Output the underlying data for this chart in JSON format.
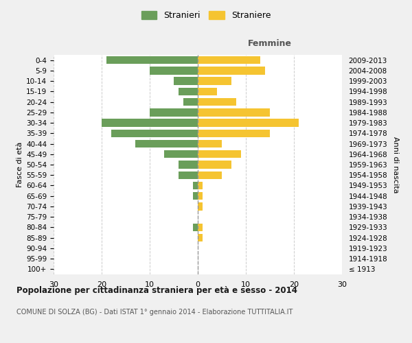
{
  "age_groups": [
    "100+",
    "95-99",
    "90-94",
    "85-89",
    "80-84",
    "75-79",
    "70-74",
    "65-69",
    "60-64",
    "55-59",
    "50-54",
    "45-49",
    "40-44",
    "35-39",
    "30-34",
    "25-29",
    "20-24",
    "15-19",
    "10-14",
    "5-9",
    "0-4"
  ],
  "birth_years": [
    "≤ 1913",
    "1914-1918",
    "1919-1923",
    "1924-1928",
    "1929-1933",
    "1934-1938",
    "1939-1943",
    "1944-1948",
    "1949-1953",
    "1954-1958",
    "1959-1963",
    "1964-1968",
    "1969-1973",
    "1974-1978",
    "1979-1983",
    "1984-1988",
    "1989-1993",
    "1994-1998",
    "1999-2003",
    "2004-2008",
    "2009-2013"
  ],
  "males": [
    0,
    0,
    0,
    0,
    1,
    0,
    0,
    1,
    1,
    4,
    4,
    7,
    13,
    18,
    20,
    10,
    3,
    4,
    5,
    10,
    19
  ],
  "females": [
    0,
    0,
    0,
    1,
    1,
    0,
    1,
    1,
    1,
    5,
    7,
    9,
    5,
    15,
    21,
    15,
    8,
    4,
    7,
    14,
    13
  ],
  "male_color": "#6a9e5a",
  "female_color": "#f5c431",
  "title": "Popolazione per cittadinanza straniera per età e sesso - 2014",
  "subtitle": "COMUNE DI SOLZA (BG) - Dati ISTAT 1° gennaio 2014 - Elaborazione TUTTITALIA.IT",
  "ylabel_left": "Fasce di età",
  "ylabel_right": "Anni di nascita",
  "xlabel_right": "Femmine",
  "legend_male": "Stranieri",
  "legend_female": "Straniere",
  "xlim": 30,
  "background_color": "#f0f0f0",
  "plot_bg_color": "#ffffff",
  "grid_color": "#cccccc",
  "bar_height": 0.75
}
